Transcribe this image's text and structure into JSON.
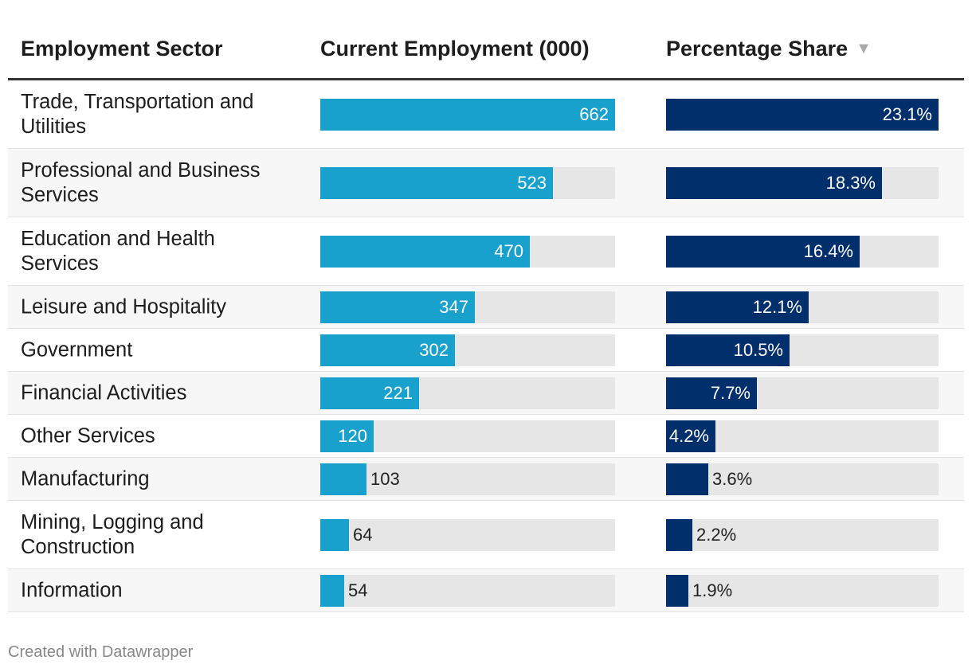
{
  "chart_data": {
    "type": "table",
    "columns": [
      "Employment Sector",
      "Current Employment (000)",
      "Percentage Share"
    ],
    "sorted_by": "Percentage Share",
    "sort_direction": "descending",
    "rows": [
      {
        "sector": "Trade, Transportation and Utilities",
        "employment": 662,
        "employment_label": "662",
        "share": 23.1,
        "share_label": "23.1%"
      },
      {
        "sector": "Professional and Business Services",
        "employment": 523,
        "employment_label": "523",
        "share": 18.3,
        "share_label": "18.3%"
      },
      {
        "sector": "Education and Health Services",
        "employment": 470,
        "employment_label": "470",
        "share": 16.4,
        "share_label": "16.4%"
      },
      {
        "sector": "Leisure and Hospitality",
        "employment": 347,
        "employment_label": "347",
        "share": 12.1,
        "share_label": "12.1%"
      },
      {
        "sector": "Government",
        "employment": 302,
        "employment_label": "302",
        "share": 10.5,
        "share_label": "10.5%"
      },
      {
        "sector": "Financial Activities",
        "employment": 221,
        "employment_label": "221",
        "share": 7.7,
        "share_label": "7.7%"
      },
      {
        "sector": "Other Services",
        "employment": 120,
        "employment_label": "120",
        "share": 4.2,
        "share_label": "4.2%"
      },
      {
        "sector": "Manufacturing",
        "employment": 103,
        "employment_label": "103",
        "share": 3.6,
        "share_label": "3.6%"
      },
      {
        "sector": "Mining, Logging and Construction",
        "employment": 64,
        "employment_label": "64",
        "share": 2.2,
        "share_label": "2.2%"
      },
      {
        "sector": "Information",
        "employment": 54,
        "employment_label": "54",
        "share": 1.9,
        "share_label": "1.9%"
      }
    ],
    "colors": {
      "employment_bar": "#18a1cd",
      "share_bar": "#002f6c",
      "track": "#e6e6e6"
    }
  },
  "footer": "Created with Datawrapper",
  "sort_icon": "triangle-down-icon"
}
